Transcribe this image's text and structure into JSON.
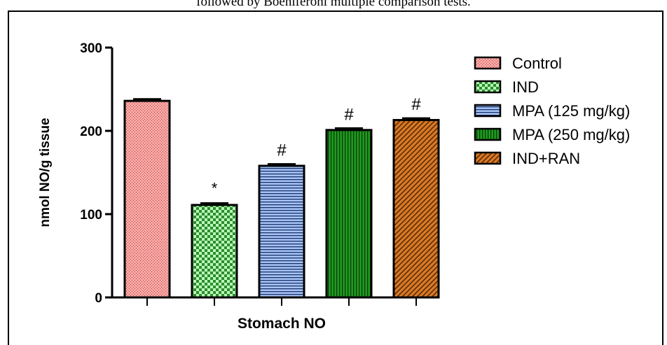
{
  "caption": "followed by Boeniferoni multiple comparison tests.",
  "chart_data": {
    "type": "bar",
    "title": "",
    "xlabel": "Stomach NO",
    "ylabel": "nmol NO/g tissue",
    "ylim": [
      0,
      300
    ],
    "yticks": [
      "0",
      "100",
      "200",
      "300"
    ],
    "categories": [
      "Control",
      "IND",
      "MPA (125 mg/kg)",
      "MPA (250 mg/kg)",
      "IND+RAN"
    ],
    "values": [
      236,
      111,
      158,
      201,
      213
    ],
    "errors": [
      2,
      2,
      2,
      2,
      2
    ],
    "annotations": [
      "",
      "*",
      "#",
      "#",
      "#"
    ],
    "colors": [
      "#f7a8a8",
      "#9ef59e",
      "#a4c4f2",
      "#1f8f1f",
      "#d0741f"
    ],
    "legend": {
      "placement": "right",
      "entries": [
        "Control",
        "IND",
        "MPA (125 mg/kg)",
        "MPA (250 mg/kg)",
        "IND+RAN"
      ]
    }
  }
}
